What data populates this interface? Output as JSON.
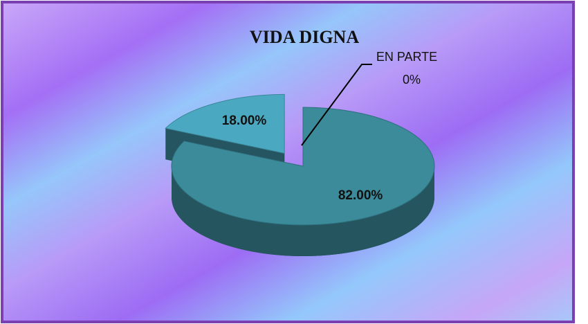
{
  "chart_data": {
    "type": "pie",
    "title": "VIDA DIGNA",
    "categories": [
      null,
      null,
      "EN PARTE"
    ],
    "values": [
      82,
      18,
      0
    ],
    "value_labels": [
      "82.00%",
      "18.00%",
      "0%"
    ],
    "colors": [
      "#3b8b9b",
      "#4aa9c0",
      "#3b8b9b"
    ],
    "explode": [
      false,
      true,
      false
    ],
    "legend": false
  }
}
